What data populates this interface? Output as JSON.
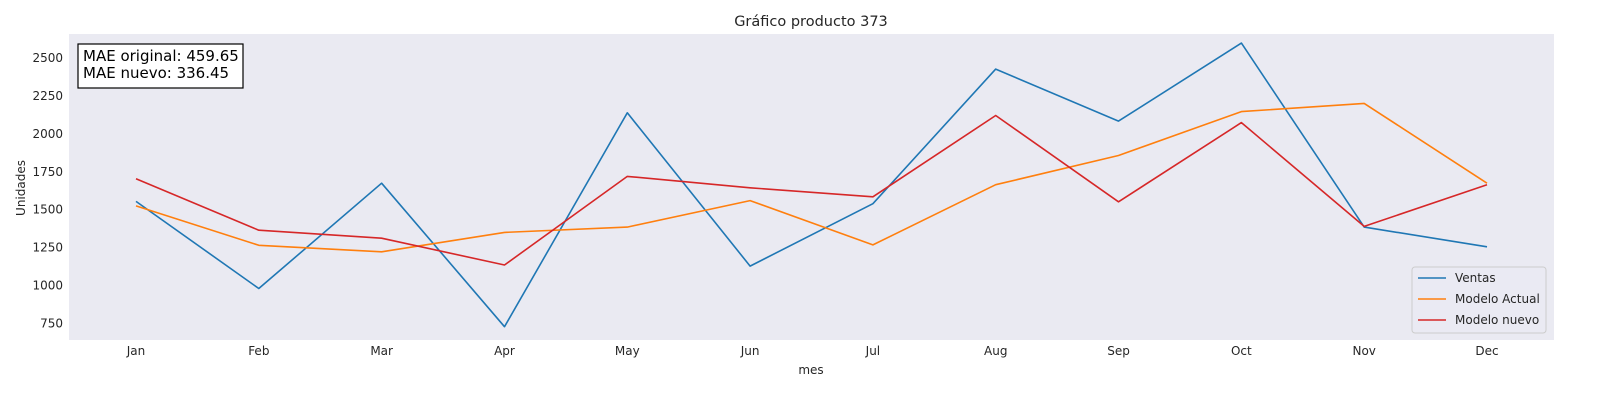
{
  "chart_data": {
    "type": "line",
    "title": "Gráfico producto 373",
    "xlabel": "mes",
    "ylabel": "Unidades",
    "categories": [
      "Jan",
      "Feb",
      "Mar",
      "Apr",
      "May",
      "Jun",
      "Jul",
      "Aug",
      "Sep",
      "Oct",
      "Nov",
      "Dec"
    ],
    "ylim": [
      640,
      2660
    ],
    "yticks": [
      750,
      1000,
      1250,
      1500,
      1750,
      2000,
      2250,
      2500
    ],
    "grid": false,
    "legend_position": "bottom-right",
    "series": [
      {
        "name": "Ventas",
        "color": "#1f77b4",
        "values": [
          1555,
          980,
          1675,
          728,
          2140,
          1128,
          1540,
          2428,
          2085,
          2600,
          1385,
          1255
        ]
      },
      {
        "name": "Modelo Actual",
        "color": "#ff7f0e",
        "values": [
          1525,
          1265,
          1222,
          1350,
          1385,
          1560,
          1268,
          1665,
          1858,
          2148,
          2202,
          1675
        ]
      },
      {
        "name": "Modelo nuevo",
        "color": "#d62728",
        "values": [
          1705,
          1365,
          1312,
          1135,
          1720,
          1645,
          1585,
          2122,
          1552,
          2075,
          1390,
          1665
        ]
      }
    ],
    "annotations": [
      "MAE original: 459.65",
      "MAE nuevo: 336.45"
    ]
  },
  "colors": {
    "plot_background": "#eaeaf2",
    "text": "#262626"
  }
}
